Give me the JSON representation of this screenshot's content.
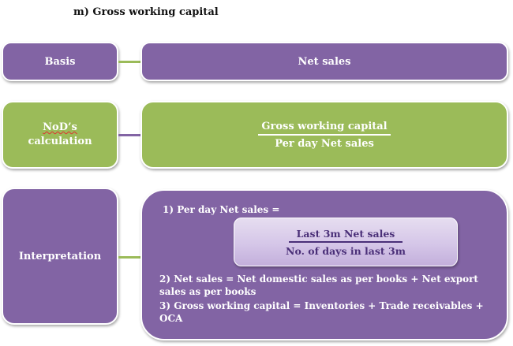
{
  "title": "m)  Gross working capital",
  "basis": {
    "label": "Basis",
    "value": "Net sales"
  },
  "nod": {
    "label_line1": "NoD’s",
    "label_line2": "calculation",
    "numerator": "Gross working capital",
    "denominator": "Per day Net sales"
  },
  "interpretation": {
    "label": "Interpretation",
    "point1": "1) Per day Net sales =",
    "formula_numerator": "Last 3m Net sales",
    "formula_denominator": "No. of days in last 3m",
    "point2": "2) Net sales = Net domestic sales as per books + Net export sales as per books",
    "point3": "3) Gross working capital = Inventories + Trade receivables + OCA"
  },
  "colors": {
    "purple": "#8264a4",
    "green": "#9bbb59",
    "inner_box": "#d5c6e8",
    "inner_text": "#4a2f78"
  }
}
